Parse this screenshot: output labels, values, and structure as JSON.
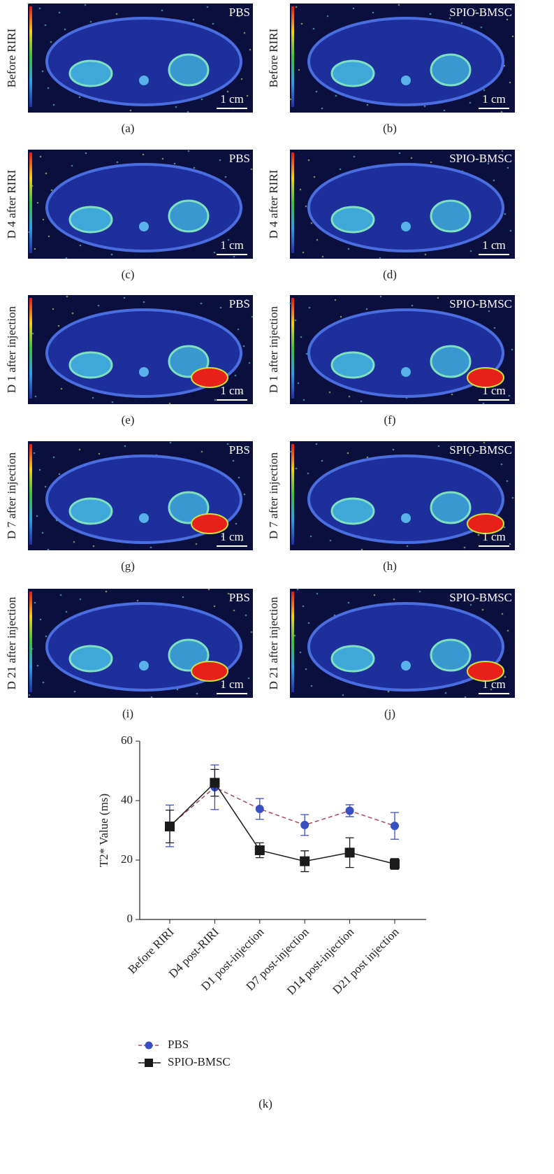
{
  "panels": [
    {
      "row_label": "Before RIRI",
      "group": "PBS",
      "scale_bar": "1 cm",
      "caption": "(a)"
    },
    {
      "row_label": "Before RIRI",
      "group": "SPIO-BMSC",
      "scale_bar": "1 cm",
      "caption": "(b)"
    },
    {
      "row_label": "D 4 after RIRI",
      "group": "PBS",
      "scale_bar": "1 cm",
      "caption": "(c)"
    },
    {
      "row_label": "D 4 after RIRI",
      "group": "SPIO-BMSC",
      "scale_bar": "1 cm",
      "caption": "(d)"
    },
    {
      "row_label": "D 1 after injection",
      "group": "PBS",
      "scale_bar": "1 cm",
      "caption": "(e)"
    },
    {
      "row_label": "D 1 after injection",
      "group": "SPIO-BMSC",
      "scale_bar": "1 cm",
      "caption": "(f)"
    },
    {
      "row_label": "D 7 after injection",
      "group": "PBS",
      "scale_bar": "1 cm",
      "caption": "(g)"
    },
    {
      "row_label": "D 7 after injection",
      "group": "SPIO-BMSC",
      "scale_bar": "1 cm",
      "caption": "(h)"
    },
    {
      "row_label": "D 21 after injection",
      "group": "PBS",
      "scale_bar": "1 cm",
      "caption": "(i)"
    },
    {
      "row_label": "D 21 after injection",
      "group": "SPIO-BMSC",
      "scale_bar": "1 cm",
      "caption": "(j)"
    }
  ],
  "chart_data": {
    "type": "line",
    "y_label": "T2* Value (ms)",
    "caption": "(k)",
    "categories": [
      "Before RIRI",
      "D4 post-RIRI",
      "D1 post-injection",
      "D7 post-injection",
      "D14 post-injection",
      "D21 post injection"
    ],
    "series": [
      {
        "name": "PBS",
        "color": "#3a4fbf",
        "line_color": "#a84a5e",
        "dashed": true,
        "marker": "circle",
        "values": [
          31.5,
          44.5,
          37.2,
          31.8,
          36.6,
          31.5
        ],
        "errors": [
          7,
          7.5,
          3.5,
          3.5,
          2,
          4.5
        ]
      },
      {
        "name": "SPIO-BMSC",
        "color": "#1a1a1a",
        "line_color": "#1a1a1a",
        "dashed": false,
        "marker": "square",
        "values": [
          31.3,
          46,
          23.3,
          19.6,
          22.5,
          18.7
        ],
        "errors": [
          5.5,
          4.5,
          2.5,
          3.5,
          5,
          1.8
        ]
      }
    ],
    "ylim": [
      0,
      60
    ],
    "yticks": [
      0,
      20,
      40,
      60
    ],
    "grid": false
  }
}
